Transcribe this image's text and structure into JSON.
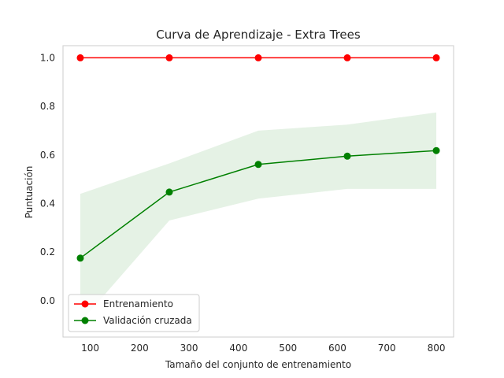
{
  "chart_data": {
    "type": "line",
    "title": "Curva de Aprendizaje - Extra Trees",
    "xlabel": "Tamaño del conjunto de entrenamiento",
    "ylabel": "Puntuación",
    "xlim": [
      45,
      835
    ],
    "ylim": [
      -0.15,
      1.05
    ],
    "xticks": [
      100,
      200,
      300,
      400,
      500,
      600,
      700,
      800
    ],
    "yticks": [
      0.0,
      0.2,
      0.4,
      0.6,
      0.8,
      1.0
    ],
    "grid": false,
    "legend_position": "lower-left",
    "x": [
      80,
      260,
      440,
      620,
      800
    ],
    "series": [
      {
        "name": "Entrenamiento",
        "color": "#ff0000",
        "values": [
          1.0,
          1.0,
          1.0,
          1.0,
          1.0
        ],
        "band_lower": [
          1.0,
          1.0,
          1.0,
          1.0,
          1.0
        ],
        "band_upper": [
          1.0,
          1.0,
          1.0,
          1.0,
          1.0
        ]
      },
      {
        "name": "Validación cruzada",
        "color": "#008000",
        "values": [
          0.175,
          0.447,
          0.561,
          0.595,
          0.618
        ],
        "band_lower": [
          -0.09,
          0.33,
          0.42,
          0.46,
          0.46
        ],
        "band_upper": [
          0.44,
          0.565,
          0.7,
          0.725,
          0.775
        ]
      }
    ]
  }
}
